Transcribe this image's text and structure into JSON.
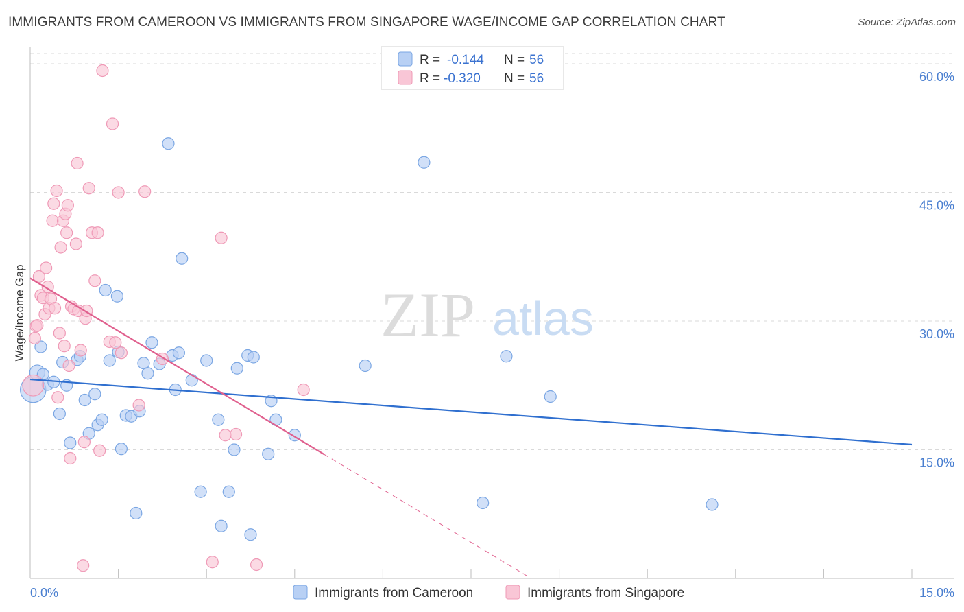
{
  "title": "IMMIGRANTS FROM CAMEROON VS IMMIGRANTS FROM SINGAPORE WAGE/INCOME GAP CORRELATION CHART",
  "source": "Source: ZipAtlas.com",
  "watermark": {
    "zip": "ZIP",
    "atlas": "atlas"
  },
  "legend": {
    "r_label": "R =",
    "n_label": "N =",
    "rows": [
      {
        "name": "Immigrants from Cameroon",
        "r": "-0.144",
        "n": "56"
      },
      {
        "name": "Immigrants from Singapore",
        "r": "-0.320",
        "n": "56"
      }
    ]
  },
  "colors": {
    "cameroon_fill": "#b8d0f4",
    "cameroon_stroke": "#7aa6e3",
    "cameroon_line": "#2f6fcf",
    "singapore_fill": "#f9c6d6",
    "singapore_stroke": "#ef99b6",
    "singapore_line": "#e0608e",
    "grid": "#d9d9d9",
    "tick_label": "#4a7fd0"
  },
  "chart_data": {
    "type": "scatter",
    "title": "IMMIGRANTS FROM CAMEROON VS IMMIGRANTS FROM SINGAPORE WAGE/INCOME GAP CORRELATION CHART",
    "xlabel": "",
    "ylabel": "Wage/Income Gap",
    "xlim": [
      0,
      15
    ],
    "ylim": [
      0,
      62
    ],
    "x_tick_labels": [
      {
        "value": 0,
        "label": "0.0%"
      },
      {
        "value": 15,
        "label": "15.0%"
      }
    ],
    "y_ticks": [
      {
        "value": 15,
        "label": "15.0%"
      },
      {
        "value": 30,
        "label": "30.0%"
      },
      {
        "value": 45,
        "label": "45.0%"
      },
      {
        "value": 60,
        "label": "60.0%"
      }
    ],
    "x_minor_ticks": [
      1.5,
      3,
      4.5,
      6,
      7.5,
      9,
      10.5,
      12,
      13.5,
      15
    ],
    "series": [
      {
        "name": "Immigrants from Cameroon",
        "r": -0.144,
        "n": 56,
        "trend": {
          "x0": 0,
          "y0": 23.2,
          "x1": 15,
          "y1": 15.6,
          "solid_to": 15
        },
        "points": [
          [
            0.05,
            22.0,
            2.2
          ],
          [
            0.12,
            24.0,
            1.3
          ],
          [
            0.18,
            27.0,
            1
          ],
          [
            0.22,
            23.8,
            1
          ],
          [
            0.3,
            22.6,
            1
          ],
          [
            0.4,
            22.9,
            1
          ],
          [
            0.5,
            19.2,
            1
          ],
          [
            0.55,
            25.2,
            1
          ],
          [
            0.62,
            22.5,
            1
          ],
          [
            0.68,
            15.8,
            1
          ],
          [
            0.8,
            25.5,
            1
          ],
          [
            0.85,
            25.9,
            1
          ],
          [
            0.93,
            20.8,
            1
          ],
          [
            1.0,
            16.9,
            1
          ],
          [
            1.1,
            21.5,
            1
          ],
          [
            1.15,
            17.9,
            1
          ],
          [
            1.22,
            18.5,
            1
          ],
          [
            1.28,
            33.6,
            1
          ],
          [
            1.35,
            25.4,
            1
          ],
          [
            1.48,
            32.9,
            1
          ],
          [
            1.5,
            26.4,
            1
          ],
          [
            1.55,
            15.1,
            1
          ],
          [
            1.63,
            19.0,
            1
          ],
          [
            1.72,
            18.9,
            1
          ],
          [
            1.8,
            7.6,
            1
          ],
          [
            1.86,
            19.5,
            1
          ],
          [
            1.93,
            25.1,
            1
          ],
          [
            2.0,
            23.9,
            1
          ],
          [
            2.07,
            27.5,
            1
          ],
          [
            2.2,
            25.0,
            1
          ],
          [
            2.35,
            50.7,
            1
          ],
          [
            2.42,
            26.0,
            1
          ],
          [
            2.47,
            22.0,
            1
          ],
          [
            2.53,
            26.3,
            1
          ],
          [
            2.58,
            37.3,
            1
          ],
          [
            2.75,
            23.1,
            1
          ],
          [
            2.9,
            10.1,
            1
          ],
          [
            3.0,
            25.4,
            1
          ],
          [
            3.2,
            18.5,
            1
          ],
          [
            3.25,
            6.1,
            1
          ],
          [
            3.38,
            10.1,
            1
          ],
          [
            3.47,
            15.0,
            1
          ],
          [
            3.52,
            24.5,
            1
          ],
          [
            3.7,
            26.0,
            1
          ],
          [
            3.75,
            5.1,
            1
          ],
          [
            3.8,
            25.8,
            1
          ],
          [
            4.05,
            14.5,
            1
          ],
          [
            4.1,
            20.7,
            1
          ],
          [
            4.18,
            18.5,
            1
          ],
          [
            4.5,
            16.7,
            1
          ],
          [
            5.7,
            24.8,
            1
          ],
          [
            6.7,
            48.5,
            1
          ],
          [
            7.7,
            8.8,
            1
          ],
          [
            8.1,
            25.9,
            1
          ],
          [
            8.85,
            21.2,
            1
          ],
          [
            11.6,
            8.6,
            1
          ]
        ]
      },
      {
        "name": "Immigrants from Singapore",
        "r": -0.32,
        "n": 56,
        "trend": {
          "x0": 0,
          "y0": 35.0,
          "x1": 15,
          "y1": -26.6,
          "solid_to": 5.0
        },
        "points": [
          [
            0.05,
            22.5,
            1.8
          ],
          [
            0.08,
            28.0,
            1
          ],
          [
            0.1,
            29.4,
            1
          ],
          [
            0.12,
            29.5,
            1
          ],
          [
            0.15,
            35.2,
            1
          ],
          [
            0.18,
            33.0,
            1
          ],
          [
            0.22,
            32.7,
            1
          ],
          [
            0.25,
            30.8,
            1
          ],
          [
            0.27,
            36.2,
            1
          ],
          [
            0.3,
            34.0,
            1
          ],
          [
            0.32,
            31.5,
            1
          ],
          [
            0.35,
            32.6,
            1
          ],
          [
            0.38,
            41.7,
            1
          ],
          [
            0.4,
            43.7,
            1
          ],
          [
            0.42,
            31.5,
            1
          ],
          [
            0.45,
            45.2,
            1
          ],
          [
            0.47,
            21.1,
            1
          ],
          [
            0.5,
            28.6,
            1
          ],
          [
            0.52,
            38.6,
            1
          ],
          [
            0.56,
            41.7,
            1
          ],
          [
            0.58,
            27.1,
            1
          ],
          [
            0.6,
            42.5,
            1
          ],
          [
            0.62,
            40.3,
            1
          ],
          [
            0.64,
            43.5,
            1
          ],
          [
            0.66,
            24.8,
            1
          ],
          [
            0.68,
            14.0,
            1
          ],
          [
            0.7,
            31.7,
            1
          ],
          [
            0.74,
            31.4,
            1
          ],
          [
            0.78,
            39.0,
            1
          ],
          [
            0.8,
            48.4,
            1
          ],
          [
            0.82,
            31.2,
            1
          ],
          [
            0.86,
            26.6,
            1
          ],
          [
            0.9,
            1.5,
            1
          ],
          [
            0.92,
            15.9,
            1
          ],
          [
            0.94,
            30.3,
            1
          ],
          [
            0.96,
            31.2,
            1
          ],
          [
            1.0,
            45.5,
            1
          ],
          [
            1.05,
            40.3,
            1
          ],
          [
            1.1,
            34.7,
            1
          ],
          [
            1.15,
            40.3,
            1
          ],
          [
            1.18,
            14.9,
            1
          ],
          [
            1.23,
            59.2,
            1
          ],
          [
            1.35,
            27.6,
            1
          ],
          [
            1.4,
            53.0,
            1
          ],
          [
            1.45,
            27.5,
            1
          ],
          [
            1.5,
            45.0,
            1
          ],
          [
            1.55,
            26.3,
            1
          ],
          [
            1.85,
            20.2,
            1
          ],
          [
            1.95,
            45.1,
            1
          ],
          [
            2.25,
            25.6,
            1
          ],
          [
            3.1,
            1.9,
            1
          ],
          [
            3.25,
            39.7,
            1
          ],
          [
            3.32,
            16.7,
            1
          ],
          [
            3.5,
            16.8,
            1
          ],
          [
            3.85,
            1.6,
            1
          ],
          [
            4.65,
            22.0,
            1
          ]
        ]
      }
    ]
  }
}
